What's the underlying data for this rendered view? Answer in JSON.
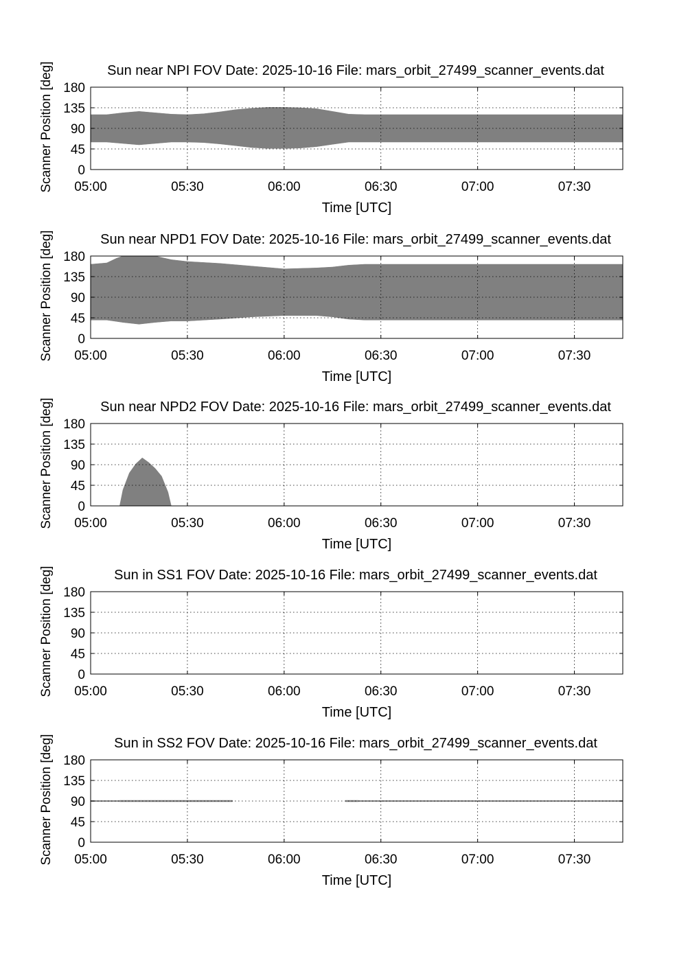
{
  "figure": {
    "background": "#ffffff",
    "fill_color": "#808080"
  },
  "chart_data": [
    {
      "type": "area",
      "title": "Sun near NPI FOV   Date: 2025-10-16   File: mars_orbit_27499_scanner_events.dat",
      "xlabel": "Time [UTC]",
      "ylabel": "Scanner Position [deg]",
      "xlim": [
        "05:00",
        "07:45"
      ],
      "ylim": [
        0,
        180
      ],
      "xticks": [
        "05:00",
        "05:30",
        "06:00",
        "06:30",
        "07:00",
        "07:30"
      ],
      "yticks": [
        "0",
        "45",
        "90",
        "135",
        "180"
      ],
      "grid": true,
      "x": [
        "05:00",
        "05:05",
        "05:10",
        "05:15",
        "05:20",
        "05:25",
        "05:30",
        "05:35",
        "05:40",
        "05:45",
        "05:50",
        "05:55",
        "06:00",
        "06:05",
        "06:10",
        "06:15",
        "06:20",
        "06:25",
        "06:30",
        "07:00",
        "07:30",
        "07:45"
      ],
      "series": [
        {
          "lower": [
            60,
            60,
            57,
            54,
            57,
            60,
            60,
            59,
            56,
            52,
            48,
            46,
            46,
            47,
            50,
            55,
            60,
            60,
            60,
            60,
            60,
            60
          ],
          "upper": [
            120,
            120,
            124,
            127,
            124,
            121,
            120,
            122,
            126,
            131,
            134,
            136,
            136,
            135,
            133,
            127,
            121,
            120,
            120,
            120,
            120,
            120
          ]
        }
      ]
    },
    {
      "type": "area",
      "title": "Sun near NPD1 FOV   Date: 2025-10-16   File: mars_orbit_27499_scanner_events.dat",
      "xlabel": "Time [UTC]",
      "ylabel": "Scanner Position [deg]",
      "xlim": [
        "05:00",
        "07:45"
      ],
      "ylim": [
        0,
        180
      ],
      "xticks": [
        "05:00",
        "05:30",
        "06:00",
        "06:30",
        "07:00",
        "07:30"
      ],
      "yticks": [
        "0",
        "45",
        "90",
        "135",
        "180"
      ],
      "grid": true,
      "x": [
        "05:00",
        "05:05",
        "05:08",
        "05:10",
        "05:15",
        "05:20",
        "05:25",
        "05:30",
        "05:40",
        "05:50",
        "06:00",
        "06:10",
        "06:15",
        "06:20",
        "06:25",
        "06:30",
        "07:00",
        "07:30",
        "07:45"
      ],
      "series": [
        {
          "lower": [
            40,
            40,
            37,
            35,
            31,
            35,
            38,
            38,
            42,
            47,
            50,
            50,
            47,
            42,
            40,
            40,
            40,
            40,
            40
          ],
          "upper": [
            162,
            165,
            175,
            180,
            180,
            180,
            172,
            168,
            164,
            158,
            152,
            154,
            156,
            160,
            162,
            162,
            162,
            162,
            162
          ]
        }
      ]
    },
    {
      "type": "area",
      "title": "Sun near NPD2 FOV   Date: 2025-10-16   File: mars_orbit_27499_scanner_events.dat",
      "xlabel": "Time [UTC]",
      "ylabel": "Scanner Position [deg]",
      "xlim": [
        "05:00",
        "07:45"
      ],
      "ylim": [
        0,
        180
      ],
      "xticks": [
        "05:00",
        "05:30",
        "06:00",
        "06:30",
        "07:00",
        "07:30"
      ],
      "yticks": [
        "0",
        "45",
        "90",
        "135",
        "180"
      ],
      "grid": true,
      "x": [
        "05:09",
        "05:10",
        "05:12",
        "05:14",
        "05:16",
        "05:18",
        "05:20",
        "05:22",
        "05:24",
        "05:25"
      ],
      "series": [
        {
          "lower": [
            0,
            0,
            0,
            0,
            0,
            0,
            0,
            0,
            0,
            0
          ],
          "upper": [
            0,
            35,
            72,
            92,
            105,
            95,
            82,
            65,
            30,
            0
          ]
        }
      ]
    },
    {
      "type": "area",
      "title": "Sun in SS1 FOV   Date: 2025-10-16   File: mars_orbit_27499_scanner_events.dat",
      "xlabel": "Time [UTC]",
      "ylabel": "Scanner Position [deg]",
      "xlim": [
        "05:00",
        "07:45"
      ],
      "ylim": [
        0,
        180
      ],
      "xticks": [
        "05:00",
        "05:30",
        "06:00",
        "06:30",
        "07:00",
        "07:30"
      ],
      "yticks": [
        "0",
        "45",
        "90",
        "135",
        "180"
      ],
      "grid": true,
      "x": [],
      "series": []
    },
    {
      "type": "area",
      "title": "Sun in SS2 FOV   Date: 2025-10-16   File: mars_orbit_27499_scanner_events.dat",
      "xlabel": "Time [UTC]",
      "ylabel": "Scanner Position [deg]",
      "xlim": [
        "05:00",
        "07:45"
      ],
      "ylim": [
        0,
        180
      ],
      "xticks": [
        "05:00",
        "05:30",
        "06:00",
        "06:30",
        "07:00",
        "07:30"
      ],
      "yticks": [
        "0",
        "45",
        "90",
        "135",
        "180"
      ],
      "grid": true,
      "x": [
        "05:00",
        "05:09",
        "05:44"
      ],
      "series": [
        {
          "x": [
            "05:00",
            "05:09",
            "05:09",
            "05:44"
          ],
          "lower": [
            89,
            89,
            88.5,
            88.5
          ],
          "upper": [
            91,
            91,
            91.5,
            91.5
          ]
        },
        {
          "x": [
            "06:19",
            "06:23",
            "06:23",
            "07:45"
          ],
          "lower": [
            88.5,
            88.5,
            89,
            89
          ],
          "upper": [
            91.5,
            91.5,
            91,
            91
          ]
        }
      ]
    }
  ]
}
